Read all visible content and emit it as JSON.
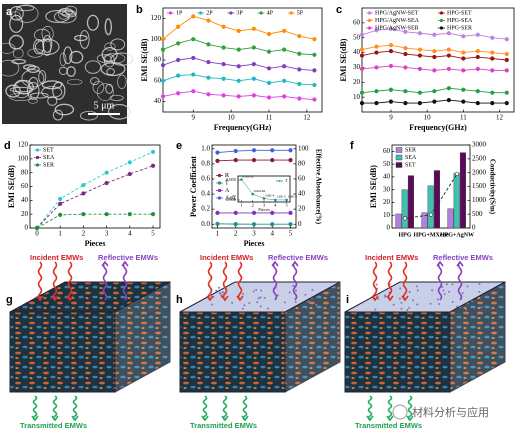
{
  "figure": {
    "panel_labels": [
      "a",
      "b",
      "c",
      "d",
      "e",
      "f",
      "g",
      "h",
      "i"
    ],
    "scale_bar": "5 μm",
    "diagram_labels": {
      "incident": "Incident EMWs",
      "reflective": "Reflective EMWs",
      "transmitted": "Transmitted EMWs"
    },
    "watermark": "材料分析与应用"
  },
  "chart_data": [
    {
      "type": "line",
      "x_label": "Frequency(GHz)",
      "y_label": "EMI SE(dB)",
      "x": [
        8.2,
        8.6,
        9.0,
        9.4,
        9.8,
        10.2,
        10.6,
        11.0,
        11.4,
        11.8,
        12.2
      ],
      "xlim": [
        8.2,
        12.4
      ],
      "xticks": [
        9,
        10,
        11,
        12
      ],
      "ylim": [
        30,
        130
      ],
      "yticks": [
        40,
        60,
        80,
        100,
        120
      ],
      "legend": "upper left",
      "legend_columns": 5,
      "series": [
        {
          "name": "1P",
          "color": "#e040e0",
          "values": [
            45,
            48,
            50,
            47,
            46,
            45,
            46,
            44,
            45,
            43,
            42
          ]
        },
        {
          "name": "2P",
          "color": "#20b8c0",
          "values": [
            60,
            65,
            66,
            63,
            62,
            60,
            62,
            58,
            60,
            57,
            56
          ]
        },
        {
          "name": "3P",
          "color": "#8040c0",
          "values": [
            75,
            80,
            82,
            78,
            76,
            74,
            76,
            72,
            74,
            71,
            70
          ]
        },
        {
          "name": "4P",
          "color": "#30a040",
          "values": [
            90,
            96,
            100,
            95,
            92,
            90,
            92,
            88,
            90,
            86,
            85
          ]
        },
        {
          "name": "5P",
          "color": "#ff8c00",
          "values": [
            100,
            112,
            122,
            118,
            112,
            108,
            110,
            105,
            108,
            103,
            100
          ]
        }
      ]
    },
    {
      "type": "line",
      "x_label": "Frequency(GHz)",
      "y_label": "EMI SE(dB)",
      "x": [
        8.2,
        8.6,
        9.0,
        9.4,
        9.8,
        10.2,
        10.6,
        11.0,
        11.4,
        11.8,
        12.2
      ],
      "xlim": [
        8.2,
        12.4
      ],
      "xticks": [
        9,
        10,
        11,
        12
      ],
      "ylim": [
        0,
        70
      ],
      "yticks": [
        10,
        20,
        30,
        40,
        50,
        60
      ],
      "legend": "upper left",
      "legend_columns": 2,
      "series": [
        {
          "name": "HPG/AgNW-SET",
          "color": "#c080e0",
          "values": [
            52,
            55,
            56,
            54,
            53,
            52,
            53,
            51,
            52,
            50,
            49
          ]
        },
        {
          "name": "HPG-SET",
          "color": "#a01010",
          "values": [
            38,
            40,
            41,
            39,
            38,
            37,
            38,
            36,
            37,
            36,
            35
          ]
        },
        {
          "name": "HPG/AgNW-SEA",
          "color": "#ff9020",
          "values": [
            42,
            44,
            45,
            43,
            42,
            41,
            42,
            40,
            41,
            40,
            39
          ]
        },
        {
          "name": "HPG-SEA",
          "color": "#20a040",
          "values": [
            13,
            14,
            15,
            14,
            13,
            14,
            16,
            15,
            14,
            13,
            13
          ]
        },
        {
          "name": "HPG/AgNW-SER",
          "color": "#e040c0",
          "values": [
            29,
            30,
            31,
            30,
            29,
            28,
            29,
            28,
            29,
            28,
            28
          ]
        },
        {
          "name": "HPG-SER",
          "color": "#111111",
          "values": [
            6,
            6,
            7,
            6,
            6,
            7,
            8,
            7,
            6,
            6,
            6
          ]
        }
      ]
    },
    {
      "type": "line",
      "x_label": "Pieces",
      "y_label": "EMI SE(dB)",
      "x": [
        0,
        1,
        2,
        3,
        4,
        5
      ],
      "xlim": [
        -0.3,
        5.3
      ],
      "xticks": [
        0,
        1,
        2,
        3,
        4,
        5
      ],
      "ylim": [
        0,
        120
      ],
      "yticks": [
        0,
        20,
        40,
        60,
        80,
        100,
        120
      ],
      "legend": "upper left",
      "legend_columns": 1,
      "series": [
        {
          "name": "SET",
          "color": "#30c8c8",
          "values": [
            0,
            42,
            62,
            80,
            95,
            110
          ]
        },
        {
          "name": "SEA",
          "color": "#7a2a7a",
          "values": [
            0,
            35,
            50,
            65,
            78,
            90
          ]
        },
        {
          "name": "SER",
          "color": "#209040",
          "values": [
            0,
            19,
            20,
            20,
            20,
            20
          ]
        }
      ]
    },
    {
      "type": "line",
      "x_label": "Pieces",
      "y_label": "Power Coefficient",
      "y2_label": "Effective Absorbance(%)",
      "x": [
        1,
        2,
        3,
        4,
        5
      ],
      "xlim": [
        0.7,
        5.3
      ],
      "xticks": [
        1,
        2,
        3,
        4,
        5
      ],
      "ylim": [
        -0.05,
        1.05
      ],
      "yticks": [
        {
          "value": 0,
          "label": "0.0"
        },
        0.2,
        0.4,
        0.6,
        0.8,
        {
          "value": 1,
          "label": "1.0"
        }
      ],
      "y2lim": [
        -5,
        105
      ],
      "y2ticks": [
        0,
        20,
        40,
        60,
        80,
        100
      ],
      "legend": "center left",
      "legend_columns": 1,
      "series": [
        {
          "name": "R",
          "color": "#8a1a3a",
          "values": [
            0.84,
            0.85,
            0.85,
            0.85,
            0.85
          ]
        },
        {
          "name": "T",
          "color": "#209090",
          "values": [
            0.00512,
            0.00148,
            0.00038,
            1.6e-05,
            1.9e-05
          ]
        },
        {
          "name": "A",
          "color": "#8030c0",
          "values": [
            0.15,
            0.15,
            0.15,
            0.15,
            0.15
          ]
        },
        {
          "name": "Aeff",
          "color": "#4060e0",
          "axis": "y2",
          "values": [
            95,
            97,
            98,
            98,
            98
          ]
        }
      ]
    },
    {
      "type": "line",
      "x_label": "Pieces",
      "x": [
        1,
        2,
        3,
        4,
        5
      ],
      "xlim": [
        0.7,
        5.3
      ],
      "xticks": [
        1,
        2,
        3,
        4,
        5
      ],
      "ylim": [
        -0.0005,
        0.006
      ],
      "yticks": [
        {
          "value": 0,
          "label": "0.000"
        },
        {
          "value": 0.005,
          "label": "0.005"
        }
      ],
      "legend": "upper right",
      "legend_columns": 1,
      "series": [
        {
          "name": "T",
          "color": "#209090",
          "values": [
            0.00512,
            0.00148,
            0.00038,
            1.6e-05,
            1.9e-05
          ],
          "value_labels": [
            "0.00512",
            "0.00148",
            "3.8E-4",
            "1.6E-5",
            "1.9E-5"
          ]
        }
      ]
    },
    {
      "type": "bar",
      "y_label": "EMI SE(dB)",
      "y2_label": "Conductivity(S/m)",
      "categories": [
        "HPG",
        "HPG+MXene",
        "HPG+AgNW"
      ],
      "ylim": [
        0,
        65
      ],
      "yticks": [
        0,
        10,
        20,
        30,
        40,
        50,
        60
      ],
      "y2lim": [
        0,
        3000
      ],
      "y2ticks": [
        0,
        500,
        1000,
        1500,
        2000,
        2500,
        3000
      ],
      "legend": "upper left",
      "legend_columns": 1,
      "series": [
        {
          "name": "SER",
          "color": "#b080e0",
          "values": [
            11,
            12,
            15
          ]
        },
        {
          "name": "SEA",
          "color": "#40c0b0",
          "values": [
            30,
            33,
            43
          ]
        },
        {
          "name": "SET",
          "color": "#5a0a5a",
          "values": [
            41,
            45,
            59
          ]
        },
        {
          "name": "Conductivity",
          "color": "#222222",
          "axis": "y2",
          "values": [
            350,
            480,
            1950
          ]
        }
      ]
    }
  ]
}
